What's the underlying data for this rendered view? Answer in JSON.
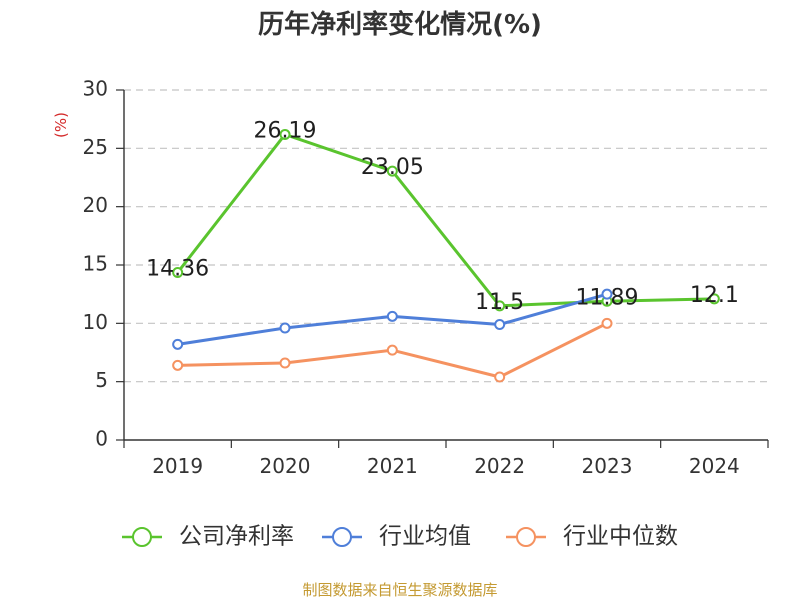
{
  "chart_data": {
    "type": "line",
    "title": "历年净利率变化情况(%)",
    "xlabel": "",
    "ylabel": "(%)",
    "categories": [
      "2019",
      "2020",
      "2021",
      "2022",
      "2023",
      "2024"
    ],
    "ylim": [
      0,
      30
    ],
    "yticks": [
      0,
      5,
      10,
      15,
      20,
      25,
      30
    ],
    "grid": true,
    "legend_position": "bottom",
    "series": [
      {
        "name": "公司净利率",
        "color": "#5ac42e",
        "show_labels": true,
        "values": [
          14.36,
          26.19,
          23.05,
          11.5,
          11.89,
          12.1
        ]
      },
      {
        "name": "行业均值",
        "color": "#4f7fd9",
        "show_labels": false,
        "values": [
          8.2,
          9.6,
          10.6,
          9.9,
          12.5,
          null
        ]
      },
      {
        "name": "行业中位数",
        "color": "#f59260",
        "show_labels": false,
        "values": [
          6.4,
          6.6,
          7.7,
          5.4,
          10.0,
          null
        ]
      }
    ]
  },
  "footer": {
    "source": "制图数据来自恒生聚源数据库",
    "color": "#c49a32"
  }
}
